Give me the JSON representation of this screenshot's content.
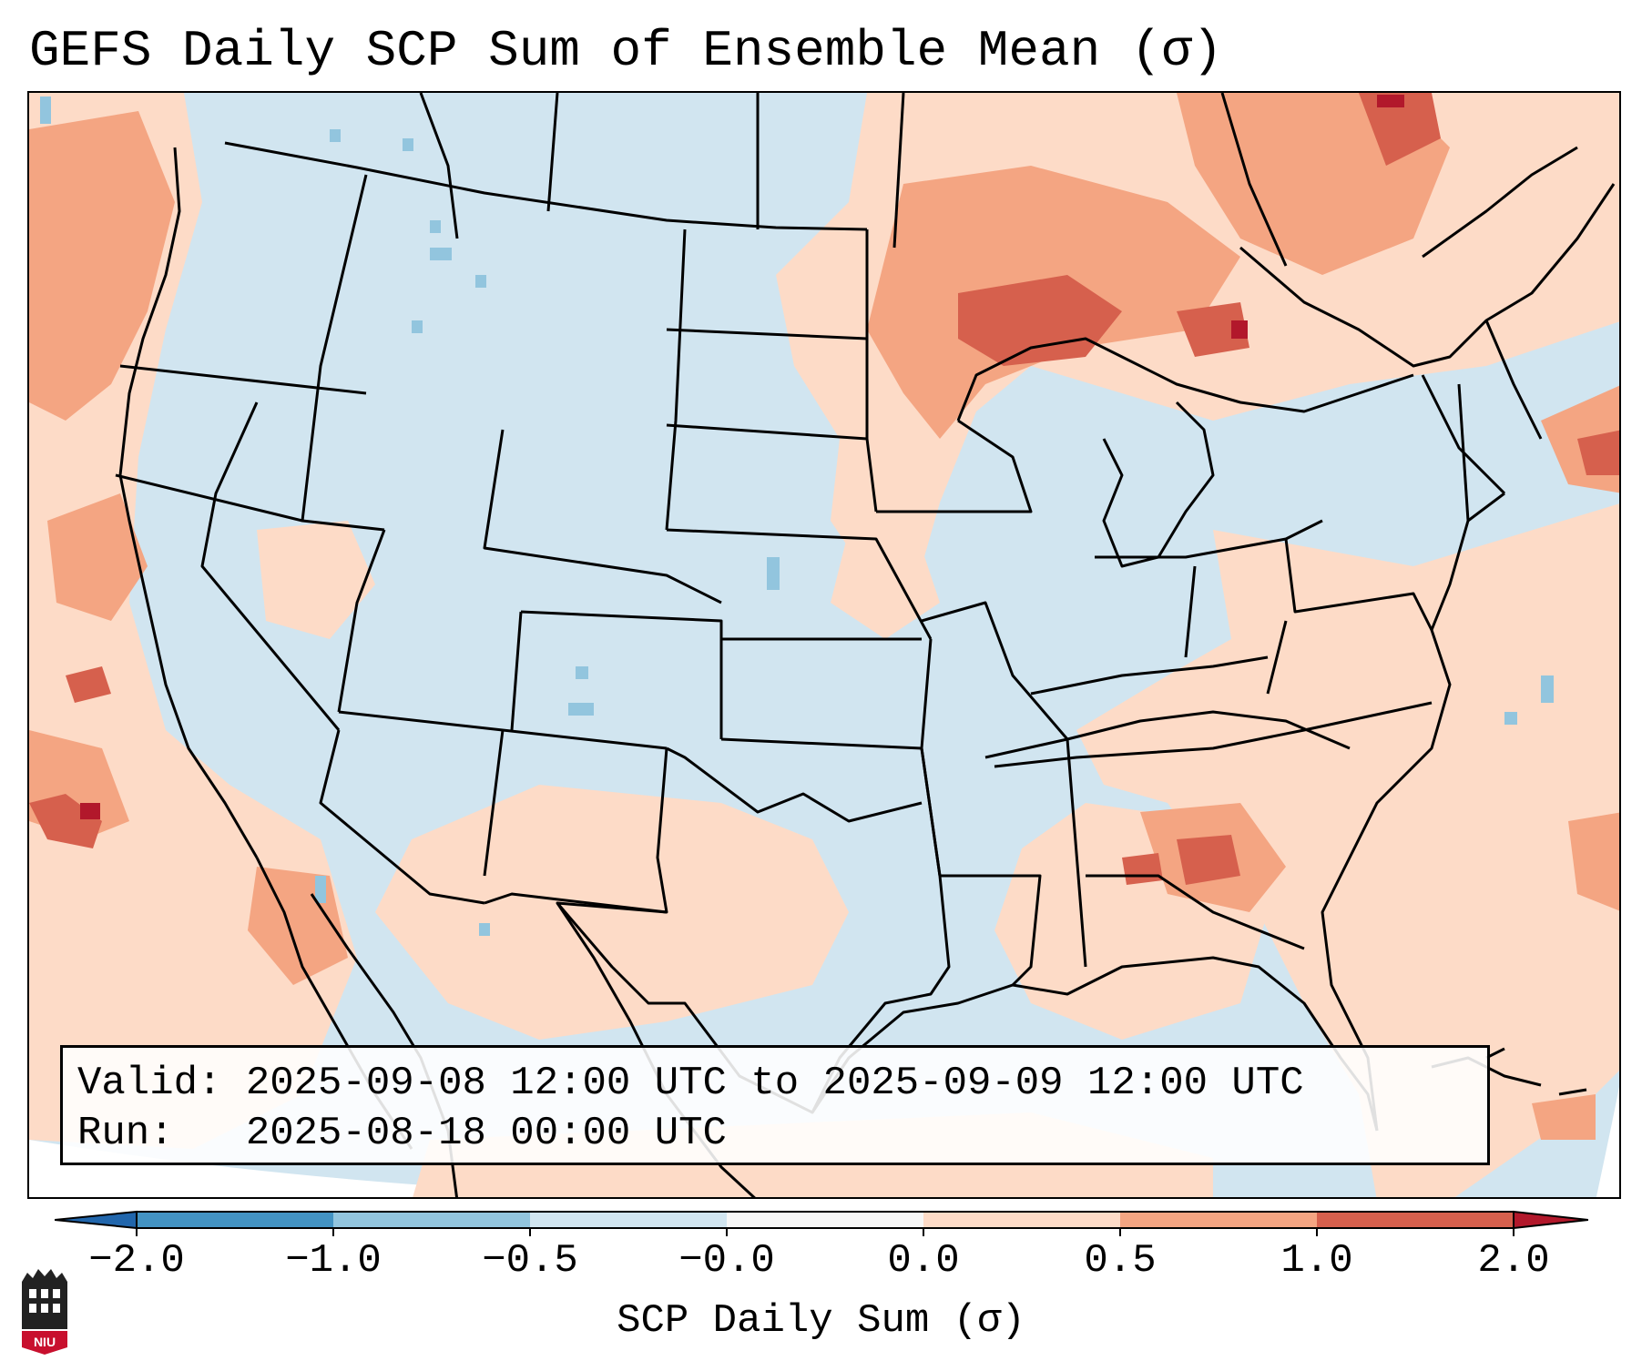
{
  "title": "GEFS Daily SCP Sum of Ensemble Mean (σ)",
  "info": {
    "valid_label": "Valid:",
    "valid_value": "2025-09-08 12:00 UTC to 2025-09-09 12:00 UTC",
    "run_label": "Run:",
    "run_value": "2025-08-18 00:00 UTC"
  },
  "colorbar": {
    "title": "SCP Daily Sum (σ)",
    "tick_labels": [
      "−2.0",
      "−1.0",
      "−0.5",
      "−0.0",
      "0.0",
      "0.5",
      "1.0",
      "2.0"
    ],
    "bins": [
      {
        "from": -2.0,
        "to": -1.0,
        "color": "#4393c3"
      },
      {
        "from": -1.0,
        "to": -0.5,
        "color": "#92c5de"
      },
      {
        "from": -0.5,
        "to": -0.0,
        "color": "#d1e5f0"
      },
      {
        "from": -0.0,
        "to": 0.0,
        "color": "#f7f7f7"
      },
      {
        "from": 0.0,
        "to": 0.5,
        "color": "#fddbc7"
      },
      {
        "from": 0.5,
        "to": 1.0,
        "color": "#f4a582"
      },
      {
        "from": 1.0,
        "to": 2.0,
        "color": "#d6604d"
      }
    ],
    "extend_low_color": "#2166ac",
    "extend_high_color": "#b2182b"
  },
  "map": {
    "region": "CONUS",
    "base_color": "#d1e5f0",
    "positive_light": "#fddbc7",
    "positive_mid": "#f4a582",
    "positive_strong": "#d6604d",
    "positive_max": "#b2182b",
    "negative_light": "#92c5de"
  },
  "logo": {
    "text": "NIU",
    "color": "#c8102e"
  }
}
